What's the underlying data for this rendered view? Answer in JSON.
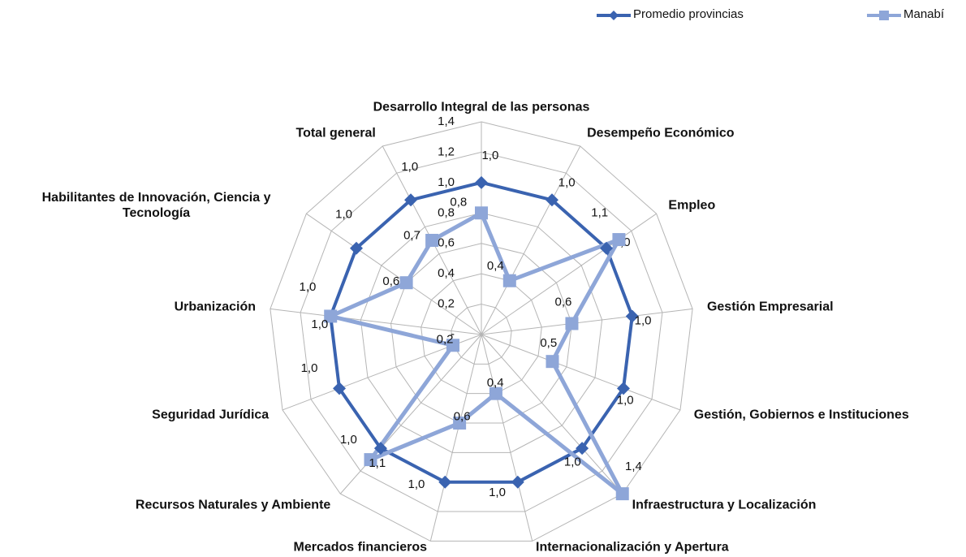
{
  "chart_data": {
    "type": "radar",
    "categories": [
      "Desarrollo Integral de las personas",
      "Desempeño Económico",
      "Empleo",
      "Gestión Empresarial",
      "Gestión, Gobiernos e Instituciones",
      "Infraestructura y Localización",
      "Internacionalización y Apertura",
      "Mercados financieros",
      "Recursos Naturales y Ambiente",
      "Seguridad Jurídica",
      "Urbanización",
      "Habilitantes de Innovación, Ciencia y Tecnología",
      "Total general"
    ],
    "series": [
      {
        "name": "Promedio provincias",
        "color": "#3a63b0",
        "marker": "diamond",
        "values": [
          1.0,
          1.0,
          1.0,
          1.0,
          1.0,
          1.0,
          1.0,
          1.0,
          1.0,
          1.0,
          1.0,
          1.0,
          1.0
        ],
        "value_labels": [
          "1,0",
          "1,0",
          "1,0",
          "1,0",
          "1,0",
          "1,0",
          "1,0",
          "1,0",
          "1,0",
          "1,0",
          "1,0",
          "1,0",
          "1,0"
        ]
      },
      {
        "name": "Manabí",
        "color": "#8ea6d8",
        "marker": "square",
        "values": [
          0.8,
          0.4,
          1.1,
          0.6,
          0.5,
          1.4,
          0.4,
          0.6,
          1.1,
          0.2,
          1.0,
          0.6,
          0.7
        ],
        "value_labels": [
          "0,8",
          "0,4",
          "1,1",
          "0,6",
          "0,5",
          "1,4",
          "0,4",
          "0,6",
          "1,1",
          "0,2",
          "1,0",
          "0,6",
          "0,7"
        ]
      }
    ],
    "rlim": [
      0,
      1.4
    ],
    "rticks": [
      {
        "value": 0,
        "label": "-"
      },
      {
        "value": 0.2,
        "label": "0,2"
      },
      {
        "value": 0.4,
        "label": "0,4"
      },
      {
        "value": 0.6,
        "label": "0,6"
      },
      {
        "value": 0.8,
        "label": "0,8"
      },
      {
        "value": 1.0,
        "label": "1,0"
      },
      {
        "value": 1.2,
        "label": "1,2"
      },
      {
        "value": 1.4,
        "label": "1,4"
      }
    ],
    "grid": true,
    "legend": "top-right"
  }
}
